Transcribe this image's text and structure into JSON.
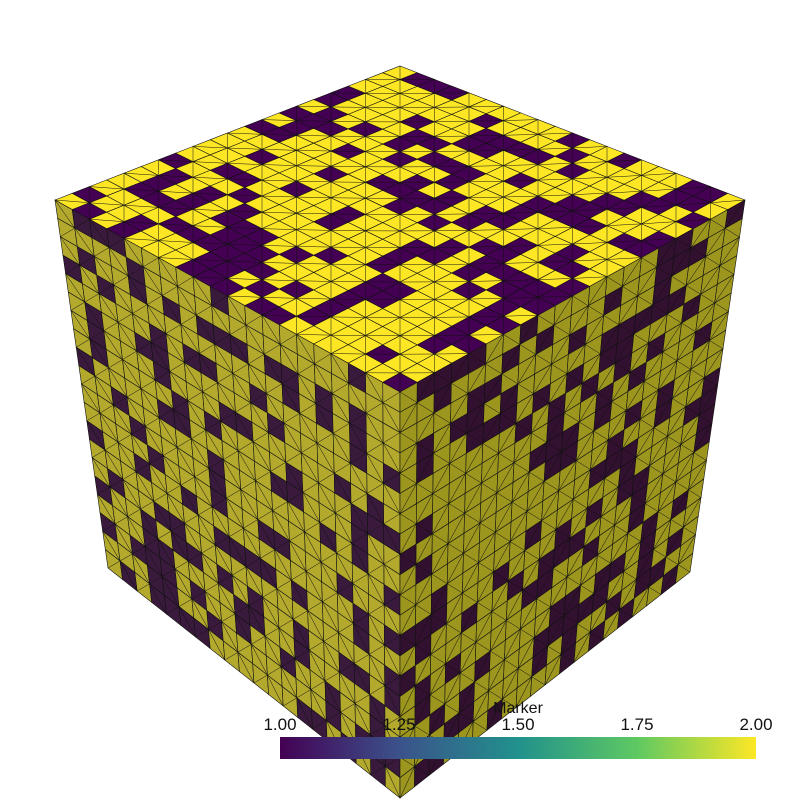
{
  "colorbar": {
    "title": "Marker",
    "ticks": [
      "1.00",
      "1.25",
      "1.50",
      "1.75",
      "2.00"
    ],
    "min": 1.0,
    "max": 2.0,
    "colormap": "viridis",
    "colormap_stops": [
      "#440154",
      "#3b528b",
      "#21918c",
      "#5ec962",
      "#fde725"
    ]
  },
  "mesh": {
    "field": "Marker",
    "values_shown": [
      1,
      2
    ],
    "grid_per_face": 20,
    "face_colors": {
      "top_marker_1": "#440154",
      "top_marker_2": "#fde725",
      "left_marker_1": "#3a1a3c",
      "left_marker_2": "#b3a92d",
      "right_marker_1": "#32102f",
      "right_marker_2": "#9c951e",
      "edge": "#111111"
    }
  }
}
